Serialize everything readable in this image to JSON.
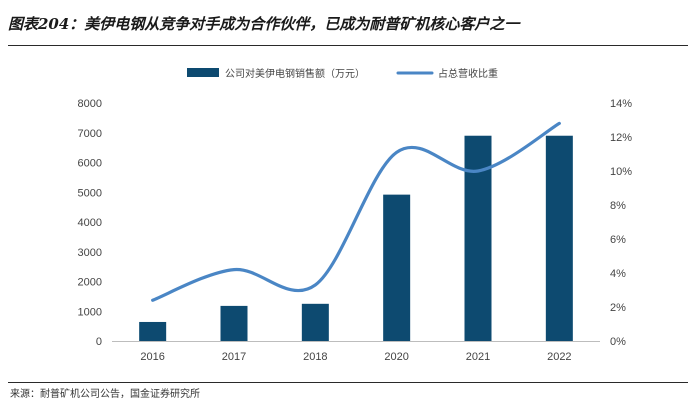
{
  "title": "图表204：美伊电钢从竞争对手成为合作伙伴，已成为耐普矿机核心客户之一",
  "source": "来源：耐普矿机公司公告，国金证券研究所",
  "chart_data": {
    "type": "bar",
    "categories": [
      "2016",
      "2017",
      "2018",
      "2020",
      "2021",
      "2022"
    ],
    "series": [
      {
        "name": "公司对美伊电钢销售额（万元）",
        "type": "bar",
        "axis": "left",
        "color": "#0d4a70",
        "values": [
          640,
          1180,
          1250,
          4920,
          6900,
          6900
        ]
      },
      {
        "name": "占总营收比重",
        "type": "line",
        "axis": "right",
        "color": "#4a86c5",
        "values": [
          2.4,
          4.2,
          3.3,
          11.1,
          10.0,
          12.8
        ]
      }
    ],
    "y_left": {
      "min": 0,
      "max": 8000,
      "ticks": [
        "0",
        "1000",
        "2000",
        "3000",
        "4000",
        "5000",
        "6000",
        "7000",
        "8000"
      ]
    },
    "y_right": {
      "min": 0,
      "max": 14,
      "ticks": [
        "0%",
        "2%",
        "4%",
        "6%",
        "8%",
        "10%",
        "12%",
        "14%"
      ]
    },
    "legend_position": "top",
    "grid": false
  }
}
